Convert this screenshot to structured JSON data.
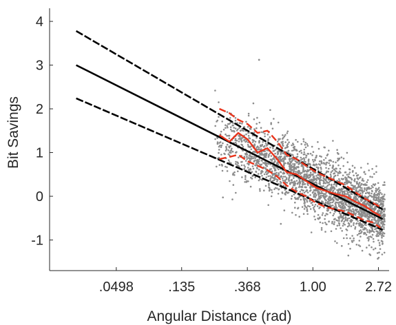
{
  "chart_data": {
    "type": "scatter",
    "title": "",
    "xlabel": "Angular Distance (rad)",
    "ylabel": "Bit Savings",
    "x_scale": "log",
    "xlim": [
      0.018,
      3.2
    ],
    "ylim": [
      -1.7,
      4.3
    ],
    "x_ticks": [
      {
        "value": 0.0498,
        "label": ".0498"
      },
      {
        "value": 0.135,
        "label": ".135"
      },
      {
        "value": 0.368,
        "label": ".368"
      },
      {
        "value": 1.0,
        "label": "1.00"
      },
      {
        "value": 2.72,
        "label": "2.72"
      }
    ],
    "y_ticks": [
      {
        "value": 4,
        "label": "4"
      },
      {
        "value": 3,
        "label": "3"
      },
      {
        "value": 2,
        "label": "2"
      },
      {
        "value": 1,
        "label": "1"
      },
      {
        "value": 0,
        "label": "0"
      },
      {
        "value": -1,
        "label": "-1"
      }
    ],
    "grid": false,
    "legend": "none",
    "colors": {
      "points": "#8c8c8c",
      "binned": "#e8341c",
      "fit": "#000000",
      "axes": "#262626"
    },
    "fit_lines": [
      {
        "style": "solid",
        "x": [
          0.027,
          2.9
        ],
        "y": [
          3.0,
          -0.52
        ]
      },
      {
        "style": "dashed",
        "x": [
          0.027,
          2.9
        ],
        "y": [
          3.78,
          -0.3
        ]
      },
      {
        "style": "dashed",
        "x": [
          0.027,
          2.9
        ],
        "y": [
          2.24,
          -0.77
        ]
      }
    ],
    "binned_series": [
      {
        "style": "solid",
        "x": [
          0.24,
          0.28,
          0.32,
          0.37,
          0.43,
          0.5,
          0.58,
          0.67,
          0.78,
          0.9,
          1.05,
          1.22,
          1.42,
          1.65,
          1.9,
          2.2,
          2.5,
          2.8
        ],
        "y": [
          1.4,
          1.25,
          1.45,
          1.3,
          1.0,
          1.1,
          0.85,
          0.55,
          0.5,
          0.35,
          0.2,
          0.12,
          0.05,
          0.0,
          -0.12,
          -0.22,
          -0.35,
          -0.45
        ]
      },
      {
        "style": "dashed",
        "x": [
          0.24,
          0.28,
          0.32,
          0.37,
          0.43,
          0.5,
          0.58,
          0.67,
          0.78,
          0.9,
          1.05,
          1.22,
          1.42,
          1.65,
          1.9,
          2.2,
          2.5,
          2.8
        ],
        "y": [
          2.0,
          1.9,
          1.75,
          1.65,
          1.45,
          1.5,
          1.25,
          0.95,
          0.85,
          0.7,
          0.55,
          0.45,
          0.35,
          0.25,
          0.1,
          -0.05,
          -0.15,
          -0.25
        ]
      },
      {
        "style": "dashed",
        "x": [
          0.24,
          0.28,
          0.32,
          0.37,
          0.43,
          0.5,
          0.58,
          0.67,
          0.78,
          0.9,
          1.05,
          1.22,
          1.42,
          1.65,
          1.9,
          2.2,
          2.5,
          2.8
        ],
        "y": [
          0.85,
          0.9,
          0.95,
          0.8,
          0.7,
          0.6,
          0.45,
          0.25,
          0.1,
          0.0,
          -0.15,
          -0.25,
          -0.3,
          -0.35,
          -0.45,
          -0.55,
          -0.6,
          -0.72
        ]
      }
    ],
    "scatter": {
      "x_range": [
        0.22,
        3.0
      ],
      "count": 2600,
      "center_line": {
        "x": [
          0.22,
          3.0
        ],
        "y": [
          1.4,
          -0.5
        ]
      },
      "spread": 0.38,
      "outliers": [
        {
          "x": 0.44,
          "y": 3.12
        }
      ]
    }
  }
}
